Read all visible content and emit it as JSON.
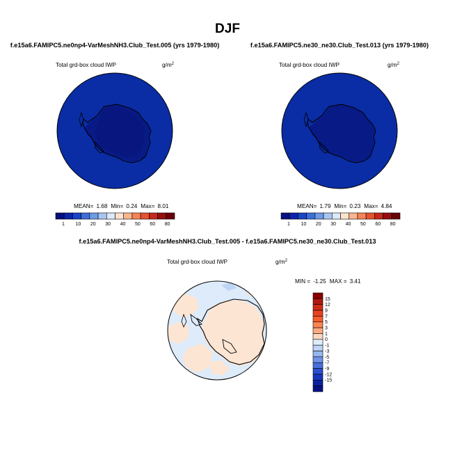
{
  "figure": {
    "title": "DJF"
  },
  "chart_data": [
    {
      "type": "heatmap",
      "projection": "south polar stereographic",
      "title": "f.e15a6.FAMIPC5.ne0np4-VarMeshNH3.Club_Test.005 (yrs 1979-1980)",
      "field_label": "Total grd-box cloud IWP",
      "units": "g/m",
      "units_sup": "2",
      "stats": {
        "mean_label": "MEAN=",
        "mean": "1.68",
        "min_label": "Min=",
        "min": "0.24",
        "max_label": "Max=",
        "max": "8.01"
      },
      "colorbar": {
        "orientation": "horizontal",
        "levels": [
          "1",
          "10",
          "20",
          "30",
          "40",
          "50",
          "60",
          "80"
        ],
        "colors": [
          "#08107e",
          "#0b24a8",
          "#1b45c7",
          "#3b6fd9",
          "#6f9ae6",
          "#a8c6f0",
          "#dde9f8",
          "#fde3cf",
          "#f9b590",
          "#f38458",
          "#e5532f",
          "#c4281a",
          "#960d0f",
          "#6a0008"
        ]
      }
    },
    {
      "type": "heatmap",
      "projection": "south polar stereographic",
      "title": "f.e15a6.FAMIPC5.ne30_ne30.Club_Test.013 (yrs 1979-1980)",
      "field_label": "Total grd-box cloud IWP",
      "units": "g/m",
      "units_sup": "2",
      "stats": {
        "mean_label": "MEAN=",
        "mean": "1.79",
        "min_label": "Min=",
        "min": "0.23",
        "max_label": "Max=",
        "max": "4.84"
      },
      "colorbar": {
        "orientation": "horizontal",
        "levels": [
          "1",
          "10",
          "20",
          "30",
          "40",
          "50",
          "60",
          "80"
        ],
        "colors": [
          "#08107e",
          "#0b24a8",
          "#1b45c7",
          "#3b6fd9",
          "#6f9ae6",
          "#a8c6f0",
          "#dde9f8",
          "#fde3cf",
          "#f9b590",
          "#f38458",
          "#e5532f",
          "#c4281a",
          "#960d0f",
          "#6a0008"
        ]
      }
    },
    {
      "type": "heatmap",
      "projection": "south polar stereographic",
      "title": "f.e15a6.FAMIPC5.ne0np4-VarMeshNH3.Club_Test.005 - f.e15a6.FAMIPC5.ne30_ne30.Club_Test.013",
      "field_label": "Total grd-box cloud IWP",
      "units": "g/m",
      "units_sup": "2",
      "stats": {
        "min_label": "MIN =",
        "min": "-1.25",
        "max_label": "MAX =",
        "max": "3.41"
      },
      "colorbar": {
        "orientation": "vertical",
        "levels": [
          "15",
          "12",
          "9",
          "7",
          "5",
          "3",
          "1",
          "0",
          "-1",
          "-3",
          "-5",
          "-7",
          "-9",
          "-12",
          "-15"
        ],
        "colors": [
          "#8b0000",
          "#b0180f",
          "#cd2a17",
          "#e8411f",
          "#f65f2b",
          "#fa8553",
          "#fbaa80",
          "#fdd6bf",
          "#ddecfb",
          "#bdd4f6",
          "#96b6ef",
          "#6f93e6",
          "#4870db",
          "#2a4ed0",
          "#1636be",
          "#0b22a0",
          "#041283"
        ]
      }
    }
  ],
  "map_colors": {
    "panel1_ocean": "#0a2da5",
    "panel1_land": "#081a86",
    "panel2_ocean": "#0a2da5",
    "panel2_land": "#081a86",
    "diff_background": "#ddebfa",
    "diff_positive": "#fde5d3",
    "diff_negative": "#bdd4f4",
    "coastline": "#000000"
  }
}
